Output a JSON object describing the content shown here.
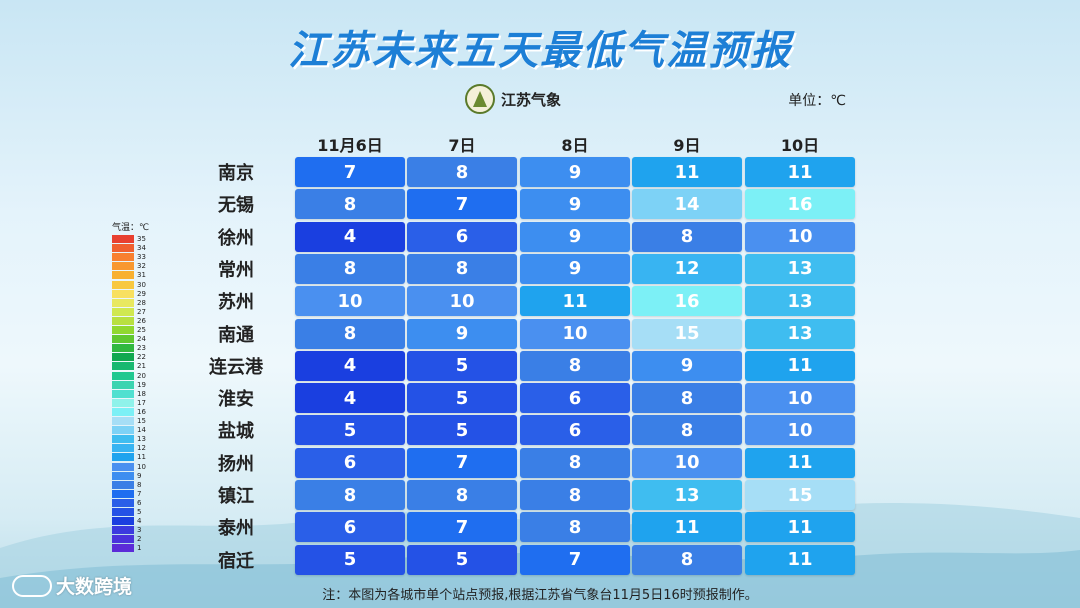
{
  "header": {
    "title": "江苏未来五天最低气温预报",
    "logo_text": "江苏气象",
    "unit_label": "单位：℃"
  },
  "legend": {
    "title": "气温：℃",
    "ticks": [
      "35",
      "34",
      "33",
      "32",
      "31",
      "30",
      "29",
      "28",
      "27",
      "26",
      "25",
      "24",
      "23",
      "22",
      "21",
      "20",
      "19",
      "18",
      "17",
      "16",
      "15",
      "14",
      "13",
      "12",
      "11",
      "10",
      "9",
      "8",
      "7",
      "6",
      "5",
      "4",
      "3",
      "2",
      "1"
    ]
  },
  "note": "注：本图为各城市单个站点预报,根据江苏省气象台11月5日16时预报制作。",
  "watermark": {
    "text": "大数跨境",
    "icon": "brand-logo-icon"
  },
  "chart_data": {
    "type": "table",
    "title": "江苏未来五天最低气温预报",
    "unit": "℃",
    "columns": [
      "11月6日",
      "7日",
      "8日",
      "9日",
      "10日"
    ],
    "rows": [
      {
        "city": "南京",
        "values": [
          7,
          8,
          9,
          11,
          11
        ]
      },
      {
        "city": "无锡",
        "values": [
          8,
          7,
          9,
          14,
          16
        ]
      },
      {
        "city": "徐州",
        "values": [
          4,
          6,
          9,
          8,
          10
        ]
      },
      {
        "city": "常州",
        "values": [
          8,
          8,
          9,
          12,
          13
        ]
      },
      {
        "city": "苏州",
        "values": [
          10,
          10,
          11,
          16,
          13
        ]
      },
      {
        "city": "南通",
        "values": [
          8,
          9,
          10,
          15,
          13
        ]
      },
      {
        "city": "连云港",
        "values": [
          4,
          5,
          8,
          9,
          11
        ]
      },
      {
        "city": "淮安",
        "values": [
          4,
          5,
          6,
          8,
          10
        ]
      },
      {
        "city": "盐城",
        "values": [
          5,
          5,
          6,
          8,
          10
        ]
      },
      {
        "city": "扬州",
        "values": [
          6,
          7,
          8,
          10,
          11
        ]
      },
      {
        "city": "镇江",
        "values": [
          8,
          8,
          8,
          13,
          15
        ]
      },
      {
        "city": "泰州",
        "values": [
          6,
          7,
          8,
          11,
          11
        ]
      },
      {
        "city": "宿迁",
        "values": [
          5,
          5,
          7,
          8,
          11
        ]
      }
    ]
  },
  "colors": {
    "1": "#5b2bd8",
    "2": "#4a32dc",
    "3": "#3b3adf",
    "4": "#1a3fe0",
    "5": "#2452e6",
    "6": "#2a5fe8",
    "7": "#1f6ef0",
    "8": "#3a7fe6",
    "9": "#3d8ef0",
    "10": "#4a90f0",
    "11": "#1fa3ee",
    "12": "#38b4f2",
    "13": "#3fbdf0",
    "14": "#7dd2f6",
    "15": "#a6def6",
    "16": "#7cf0f6",
    "17": "#8ff2ea",
    "18": "#50e0d0",
    "19": "#3cd4b0",
    "20": "#20c890",
    "21": "#18b870",
    "22": "#10a850",
    "23": "#30b840",
    "24": "#60c830",
    "25": "#90d830",
    "26": "#b8e040",
    "27": "#d0e850",
    "28": "#e8e860",
    "29": "#f8e060",
    "30": "#f8c840",
    "31": "#f8b030",
    "32": "#f89830",
    "33": "#f88030",
    "34": "#f06030",
    "35": "#e84030"
  }
}
